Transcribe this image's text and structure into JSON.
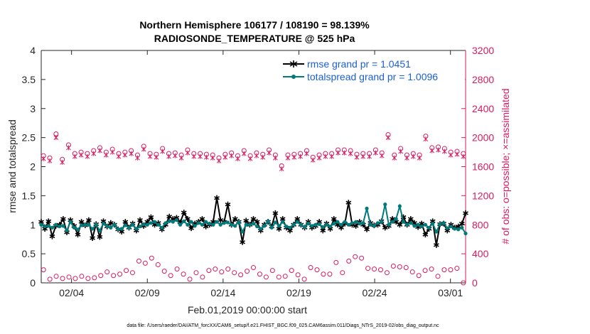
{
  "chart_data": {
    "type": "line",
    "title_line1": "Northern Hemisphere 106177 / 108190 = 98.139%",
    "title_line2": "RADIOSONDE_TEMPERATURE @ 525 hPa",
    "xlabel": "Feb.01,2019 00:00:00 start",
    "ylabel": "rmse and totalspread",
    "ylabel_right": "# of obs: o=possible; ×=assimilated",
    "footer": "data file: /Users/raeder/DAI/ATM_forcXX/CAM6_setup/f.e21.FHIST_BGC.f09_025.CAM6assim.011/Diags_NTrS_2019-02/obs_diag_output.nc",
    "xlim": [
      1,
      29
    ],
    "ylim": [
      0,
      4
    ],
    "ylim_right": [
      0,
      3200
    ],
    "x_ticks": [
      3,
      8,
      13,
      18,
      23,
      28
    ],
    "x_tick_labels": [
      "02/04",
      "02/09",
      "02/14",
      "02/19",
      "02/24",
      "03/01"
    ],
    "y_ticks": [
      0,
      0.5,
      1,
      1.5,
      2,
      2.5,
      3,
      3.5,
      4
    ],
    "y_tick_labels": [
      "0",
      "0.5",
      "1",
      "1.5",
      "2",
      "2.5",
      "3",
      "3.5",
      "4"
    ],
    "y_ticks_right": [
      0,
      400,
      800,
      1200,
      1600,
      2000,
      2400,
      2800,
      3200
    ],
    "y_tick_labels_right": [
      "0",
      "400",
      "800",
      "1200",
      "1600",
      "2000",
      "2400",
      "2800",
      "3200"
    ],
    "time_step_days": 0.25,
    "series": [
      {
        "name": "rmse grand pr = 1.0451",
        "color": "#000000",
        "marker": "star",
        "values": [
          1.05,
          0.93,
          1.06,
          0.8,
          0.98,
          1.0,
          1.1,
          0.87,
          1.08,
          0.98,
          0.83,
          1.05,
          0.99,
          1.08,
          0.77,
          1.01,
          0.79,
          1.06,
          0.97,
          1.03,
          1.0,
          0.92,
          0.88,
          1.05,
          0.95,
          1.02,
          0.9,
          1.08,
          0.98,
          1.05,
          1.13,
          1.0,
          1.03,
          0.92,
          1.0,
          1.14,
          1.1,
          1.12,
          1.04,
          1.21,
          1.1,
          0.94,
          1.02,
          1.05,
          1.1,
          0.97,
          1.0,
          1.05,
          1.46,
          1.08,
          1.05,
          1.35,
          1.0,
          1.1,
          1.05,
          0.7,
          1.07,
          1.0,
          1.1,
          1.05,
          0.9,
          1.0,
          1.05,
          0.97,
          1.2,
          0.93,
          1.1,
          0.95,
          0.9,
          1.0,
          1.1,
          1.0,
          0.95,
          1.05,
          0.95,
          0.98,
          1.05,
          0.9,
          1.02,
          0.93,
          1.1,
          1.0,
          0.95,
          1.02,
          1.38,
          1.0,
          0.98,
          1.05,
          1.0,
          0.92,
          1.03,
          0.99,
          1.0,
          1.06,
          0.95,
          0.98,
          1.1,
          1.05,
          1.0,
          1.13,
          1.0,
          1.1,
          1.03,
          0.96,
          1.02,
          0.83,
          0.93,
          1.06,
          0.65,
          1.01,
          1.02,
          0.9,
          1.0,
          0.95,
          0.97,
          1.02,
          1.2
        ]
      },
      {
        "name": "totalspread grand pr = 1.0096",
        "color": "#007a7a",
        "marker": "dot",
        "values": [
          1.0,
          0.97,
          0.98,
          0.95,
          1.0,
          0.97,
          0.98,
          0.9,
          1.05,
          0.95,
          0.92,
          0.99,
          1.0,
          1.0,
          0.93,
          1.0,
          0.9,
          1.02,
          0.98,
          0.95,
          1.0,
          0.92,
          0.93,
          0.99,
          0.95,
          1.0,
          0.93,
          0.97,
          1.01,
          1.0,
          1.03,
          1.05,
          1.0,
          0.95,
          1.03,
          1.06,
          1.05,
          1.08,
          1.0,
          1.06,
          1.0,
          1.05,
          0.98,
          1.03,
          1.0,
          1.05,
          1.02,
          1.0,
          1.05,
          1.0,
          1.03,
          1.04,
          1.0,
          0.98,
          1.05,
          0.88,
          1.0,
          1.0,
          1.02,
          0.97,
          0.93,
          0.98,
          1.06,
          0.95,
          1.04,
          0.98,
          1.05,
          0.97,
          0.95,
          1.0,
          1.05,
          1.0,
          0.96,
          1.02,
          0.98,
          1.0,
          1.01,
          0.96,
          1.0,
          0.97,
          1.02,
          1.05,
          1.0,
          1.05,
          1.0,
          1.03,
          1.05,
          1.02,
          1.03,
          1.28,
          1.0,
          0.98,
          1.03,
          1.05,
          1.35,
          1.0,
          1.05,
          1.1,
          1.32,
          1.05,
          1.0,
          1.03,
          0.98,
          1.0,
          0.97,
          1.0,
          0.95,
          1.02,
          0.88,
          1.01,
          1.03,
          0.94,
          0.97,
          0.93,
          0.92,
          0.95,
          0.85
        ]
      }
    ],
    "obs_series": [
      {
        "name": "possible",
        "marker": "circle",
        "color": "#d81b60",
        "values": [
          1750,
          1720,
          2050,
          1700,
          1900,
          1780,
          1800,
          1780,
          1820,
          1860,
          1800,
          1840,
          1780,
          1800,
          1820,
          1760,
          1880,
          1780,
          1770,
          1850,
          1780,
          1790,
          1760,
          1830,
          1780,
          1780,
          1770,
          1760,
          1720,
          1770,
          1790,
          1750,
          1820,
          1750,
          1790,
          1770,
          1830,
          1760,
          1610,
          1760,
          1770,
          1780,
          1820,
          1730,
          1760,
          1780,
          1780,
          1830,
          1830,
          1820,
          1770,
          1780,
          1780,
          1830,
          1790,
          2040,
          1760,
          1850,
          1760,
          1780,
          1760,
          2020,
          1860,
          1870,
          1850,
          1800,
          1810,
          1780
        ]
      },
      {
        "name": "assimilated",
        "marker": "x",
        "color": "#d81b60",
        "values": [
          1710,
          1680,
          2000,
          1660,
          1860,
          1740,
          1760,
          1740,
          1780,
          1820,
          1760,
          1800,
          1740,
          1760,
          1780,
          1720,
          1840,
          1740,
          1730,
          1810,
          1740,
          1750,
          1720,
          1790,
          1740,
          1740,
          1730,
          1720,
          1680,
          1730,
          1750,
          1710,
          1780,
          1710,
          1750,
          1730,
          1790,
          1720,
          1570,
          1720,
          1730,
          1740,
          1780,
          1690,
          1720,
          1740,
          1740,
          1790,
          1790,
          1780,
          1730,
          1740,
          1740,
          1790,
          1750,
          2000,
          1720,
          1810,
          1720,
          1740,
          1720,
          1980,
          1820,
          1830,
          1810,
          1760,
          1770,
          1740
        ]
      },
      {
        "name": "possible_low",
        "marker": "circle",
        "color": "#d81b60",
        "values": [
          180,
          50,
          90,
          60,
          80,
          60,
          90,
          60,
          70,
          100,
          150,
          100,
          120,
          170,
          140,
          300,
          270,
          340,
          250,
          160,
          100,
          190,
          120,
          50,
          140,
          80,
          170,
          190,
          150,
          190,
          140,
          110,
          160,
          210,
          120,
          80,
          170,
          80,
          90,
          170,
          110,
          50,
          210,
          180,
          120,
          120,
          280,
          140,
          300,
          360,
          340,
          200,
          190,
          180,
          140,
          230,
          220,
          210,
          150,
          100,
          170,
          190,
          90,
          180,
          180,
          200,
          0
        ]
      }
    ],
    "legend": [
      "rmse grand pr = 1.0451",
      "totalspread grand pr = 1.0096"
    ]
  }
}
